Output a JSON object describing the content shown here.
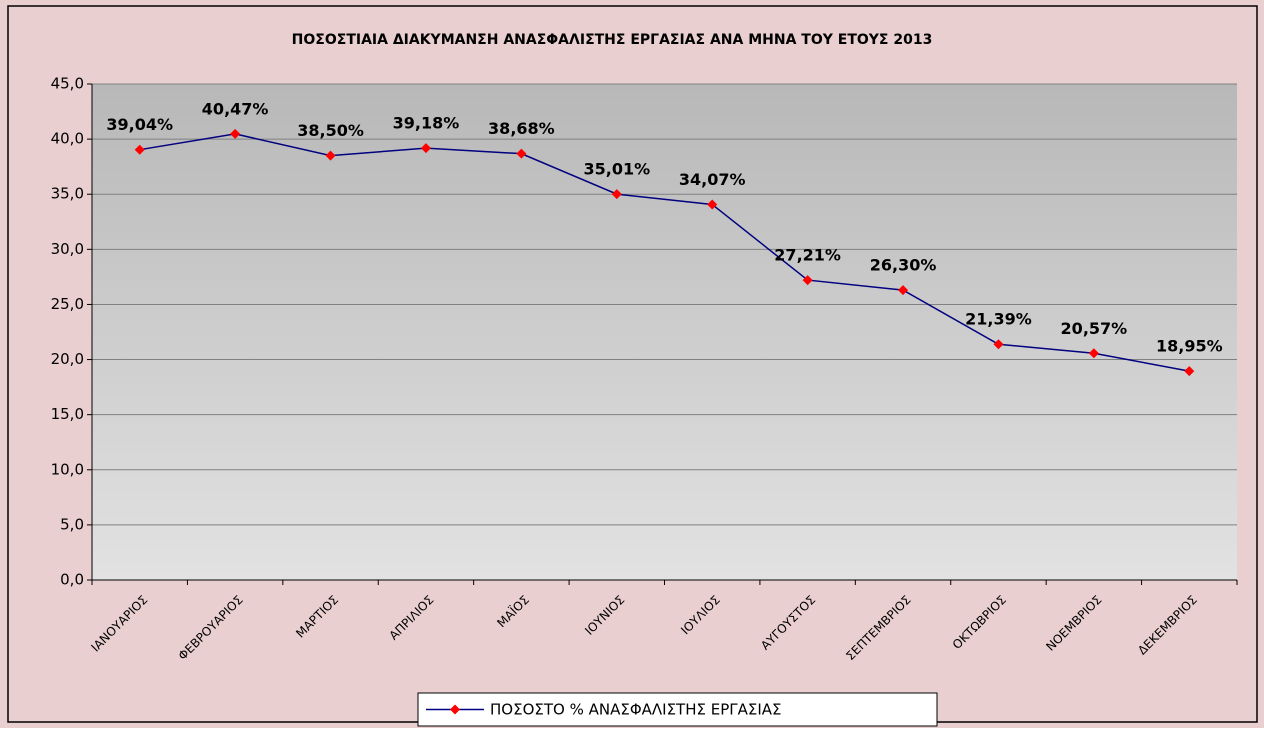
{
  "chart_data": {
    "type": "line",
    "title": "ΠΟΣΟΣΤΙΑΙΑ ΔΙΑΚΥΜΑΝΣΗ ΑΝΑΣΦΑΛΙΣΤΗΣ ΕΡΓΑΣΙΑΣ ΑΝΑ ΜΗΝΑ ΤΟΥ ΕΤΟΥΣ 2013",
    "categories": [
      "ΙΑΝΟΥΑΡΙΟΣ",
      "ΦΕΒΡΟΥΑΡΙΟΣ",
      "ΜΑΡΤΙΟΣ",
      "ΑΠΡΙΛΙΟΣ",
      "ΜΑΪΟΣ",
      "ΙΟΥΝΙΟΣ",
      "ΙΟΥΛΙΟΣ",
      "ΑΥΓΟΥΣΤΟΣ",
      "ΣΕΠΤΕΜΒΡΙΟΣ",
      "ΟΚΤΩΒΡΙΟΣ",
      "ΝΟΕΜΒΡΙΟΣ",
      "ΔΕΚΕΜΒΡΙΟΣ"
    ],
    "series": [
      {
        "name": "ΠΟΣΟΣΤΟ % ΑΝΑΣΦΑΛΙΣΤΗΣ ΕΡΓΑΣΙΑΣ",
        "color": "#000080",
        "marker_color": "#ff0000",
        "values": [
          39.04,
          40.47,
          38.5,
          39.18,
          38.68,
          35.01,
          34.07,
          27.21,
          26.3,
          21.39,
          20.57,
          18.95
        ],
        "value_labels": [
          "39,04%",
          "40,47%",
          "38,50%",
          "39,18%",
          "38,68%",
          "35,01%",
          "34,07%",
          "27,21%",
          "26,30%",
          "21,39%",
          "20,57%",
          "18,95%"
        ]
      }
    ],
    "ylim": [
      0,
      45
    ],
    "yticks": [
      {
        "value": 0,
        "label": "0,0"
      },
      {
        "value": 5,
        "label": "5,0"
      },
      {
        "value": 10,
        "label": "10,0"
      },
      {
        "value": 15,
        "label": "15,0"
      },
      {
        "value": 20,
        "label": "20,0"
      },
      {
        "value": 25,
        "label": "25,0"
      },
      {
        "value": 30,
        "label": "30,0"
      },
      {
        "value": 35,
        "label": "35,0"
      },
      {
        "value": 40,
        "label": "40,0"
      },
      {
        "value": 45,
        "label": "45,0"
      }
    ],
    "grid": true,
    "legend": "bottom"
  }
}
